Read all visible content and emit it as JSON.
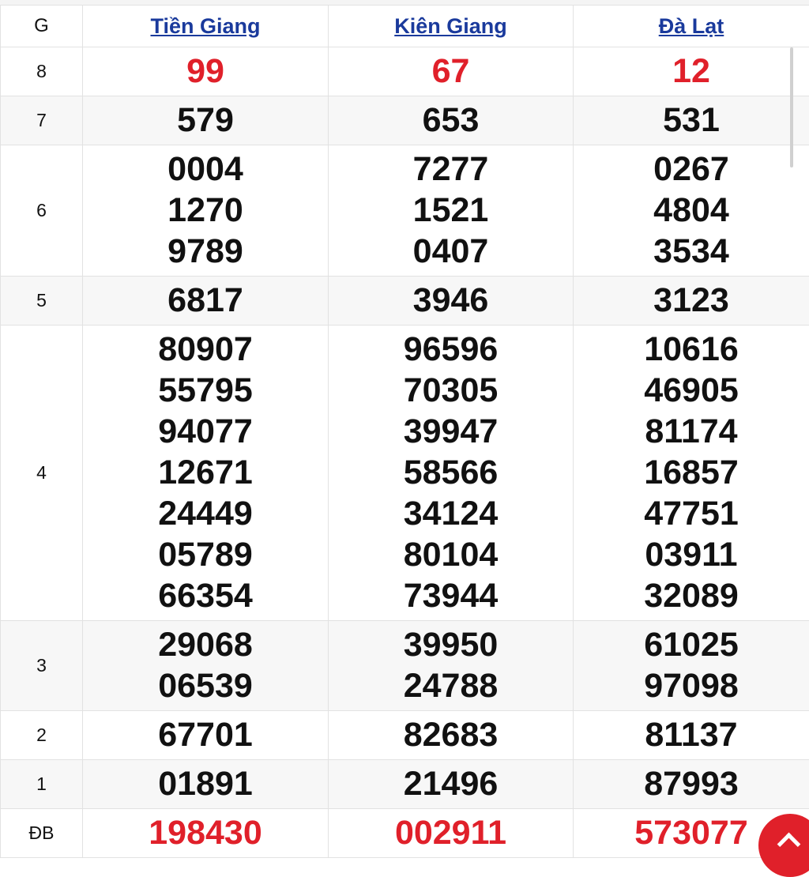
{
  "header": {
    "g": "G",
    "provinces": [
      "Tiền Giang",
      "Kiên Giang",
      "Đà Lạt"
    ]
  },
  "rows": [
    {
      "g": "8",
      "red": true,
      "values": [
        [
          "99"
        ],
        [
          "67"
        ],
        [
          "12"
        ]
      ]
    },
    {
      "g": "7",
      "values": [
        [
          "579"
        ],
        [
          "653"
        ],
        [
          "531"
        ]
      ]
    },
    {
      "g": "6",
      "values": [
        [
          "0004",
          "1270",
          "9789"
        ],
        [
          "7277",
          "1521",
          "0407"
        ],
        [
          "0267",
          "4804",
          "3534"
        ]
      ]
    },
    {
      "g": "5",
      "values": [
        [
          "6817"
        ],
        [
          "3946"
        ],
        [
          "3123"
        ]
      ]
    },
    {
      "g": "4",
      "values": [
        [
          "80907",
          "55795",
          "94077",
          "12671",
          "24449",
          "05789",
          "66354"
        ],
        [
          "96596",
          "70305",
          "39947",
          "58566",
          "34124",
          "80104",
          "73944"
        ],
        [
          "10616",
          "46905",
          "81174",
          "16857",
          "47751",
          "03911",
          "32089"
        ]
      ]
    },
    {
      "g": "3",
      "values": [
        [
          "29068",
          "06539"
        ],
        [
          "39950",
          "24788"
        ],
        [
          "61025",
          "97098"
        ]
      ]
    },
    {
      "g": "2",
      "values": [
        [
          "67701"
        ],
        [
          "82683"
        ],
        [
          "81137"
        ]
      ]
    },
    {
      "g": "1",
      "values": [
        [
          "01891"
        ],
        [
          "21496"
        ],
        [
          "87993"
        ]
      ]
    },
    {
      "g": "ĐB",
      "red": true,
      "values": [
        [
          "198430"
        ],
        [
          "002911"
        ],
        [
          "573077"
        ]
      ]
    }
  ],
  "colors": {
    "red": "#e0202a",
    "link": "#1a3a9c"
  },
  "icons": {
    "scroll_top": "chevron-up-icon"
  }
}
